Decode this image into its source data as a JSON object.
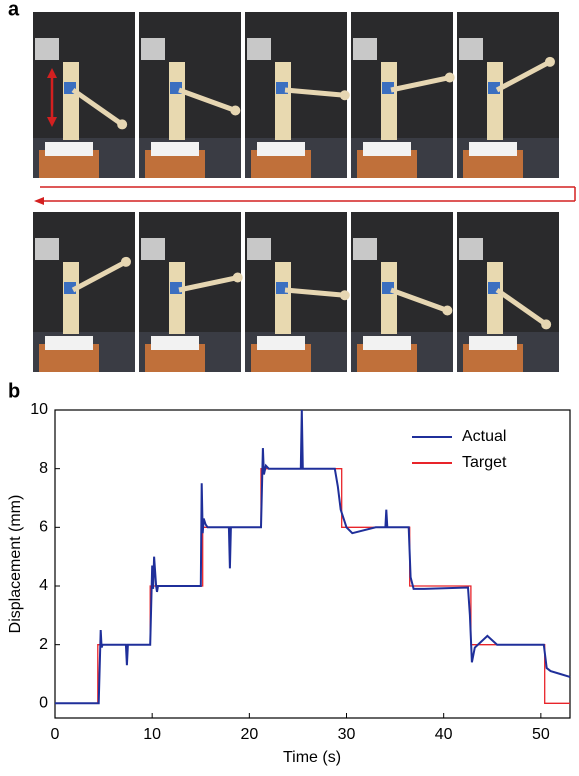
{
  "figure": {
    "panel_labels": [
      "a",
      "b"
    ]
  },
  "chart_data": {
    "type": "line",
    "xlabel": "Time (s)",
    "ylabel": "Displacement (mm)",
    "xlim": [
      0,
      53
    ],
    "ylim": [
      -0.5,
      10
    ],
    "xticks": [
      0,
      10,
      20,
      30,
      40,
      50
    ],
    "yticks": [
      0,
      2,
      4,
      6,
      8,
      10
    ],
    "legend": "upper right",
    "series": [
      {
        "name": "Actual",
        "color": "#1f2f9a",
        "x": [
          0,
          4.5,
          4.7,
          4.8,
          4.9,
          5.2,
          7.3,
          7.4,
          7.5,
          9.8,
          10.0,
          10.1,
          10.2,
          10.4,
          10.5,
          10.6,
          13.0,
          15.0,
          15.1,
          15.2,
          15.3,
          15.5,
          15.7,
          16.0,
          17.9,
          18.0,
          18.1,
          21.2,
          21.4,
          21.5,
          21.7,
          22.0,
          25.3,
          25.4,
          25.5,
          28.8,
          29.1,
          29.4,
          30.0,
          30.6,
          33.0,
          34.0,
          34.1,
          34.2,
          36.4,
          36.6,
          36.9,
          38.0,
          42.5,
          42.7,
          42.9,
          43.2,
          44.5,
          45.5,
          48.0,
          50.3,
          50.6,
          51.0,
          52.0,
          53.0
        ],
        "values": [
          0,
          0,
          2.5,
          1.9,
          2.0,
          2.0,
          2.0,
          1.3,
          2.0,
          2.0,
          4.7,
          3.9,
          5.0,
          4.0,
          3.8,
          4.0,
          4.0,
          4.0,
          7.5,
          5.8,
          6.3,
          6.1,
          6.0,
          6.0,
          6.0,
          4.6,
          6.0,
          6.0,
          8.7,
          7.8,
          8.1,
          8.0,
          8.0,
          10.0,
          8.0,
          8.0,
          7.4,
          6.6,
          6.0,
          5.8,
          6.0,
          6.0,
          6.6,
          6.0,
          6.0,
          4.3,
          3.9,
          3.9,
          3.95,
          3.0,
          1.4,
          1.9,
          2.3,
          2.0,
          2.0,
          2.0,
          1.2,
          1.1,
          1.0,
          0.9
        ]
      },
      {
        "name": "Target",
        "color": "#e8242a",
        "x": [
          0,
          4.4,
          4.4,
          9.8,
          9.8,
          15.2,
          15.2,
          21.2,
          21.2,
          29.5,
          29.5,
          36.5,
          36.5,
          42.8,
          42.8,
          50.4,
          50.4,
          53.0
        ],
        "values": [
          0,
          0,
          2,
          2,
          4,
          4,
          6,
          6,
          8,
          8,
          6,
          6,
          4,
          4,
          2,
          2,
          0,
          0
        ]
      }
    ]
  }
}
